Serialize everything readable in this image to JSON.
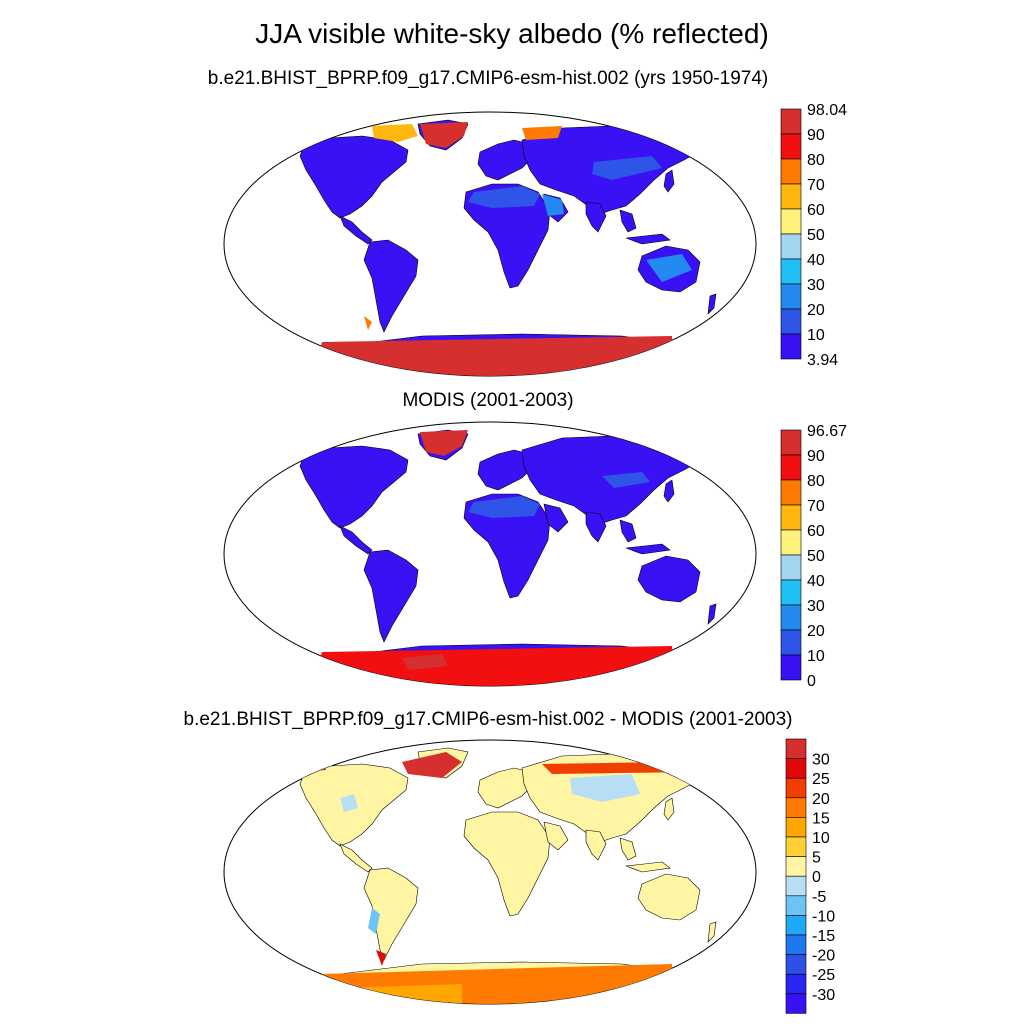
{
  "title": "JJA visible white-sky albedo (% reflected)",
  "panels": [
    {
      "title": "b.e21.BHIST_BPRP.f09_g17.CMIP6-esm-hist.002 (yrs 1950-1974)",
      "colorbar": {
        "labels": [
          "98.04",
          "90",
          "80",
          "70",
          "60",
          "50",
          "40",
          "30",
          "20",
          "10",
          "3.94"
        ],
        "colors": [
          "#d62f2f",
          "#f20f0f",
          "#ff7a00",
          "#ffb70f",
          "#fff27a",
          "#a3d4f0",
          "#1ec0f5",
          "#2489f0",
          "#2f55e8",
          "#3a10f5"
        ]
      }
    },
    {
      "title": "MODIS (2001-2003)",
      "colorbar": {
        "labels": [
          "96.67",
          "90",
          "80",
          "70",
          "60",
          "50",
          "40",
          "30",
          "20",
          "10",
          "0"
        ],
        "colors": [
          "#d62f2f",
          "#f20f0f",
          "#ff7a00",
          "#ffb70f",
          "#fff27a",
          "#a3d4f0",
          "#1ec0f5",
          "#2489f0",
          "#2f55e8",
          "#3a10f5"
        ]
      }
    },
    {
      "title": "b.e21.BHIST_BPRP.f09_g17.CMIP6-esm-hist.002 - MODIS (2001-2003)",
      "colorbar": {
        "labels": [
          "30",
          "25",
          "20",
          "15",
          "10",
          "5",
          "0",
          "-5",
          "-10",
          "-15",
          "-20",
          "-25",
          "-30"
        ],
        "colors": [
          "#d62f2f",
          "#e00808",
          "#f03d00",
          "#ff7a00",
          "#ffa600",
          "#ffd033",
          "#fff5a3",
          "#b8def5",
          "#6cc4f5",
          "#1ea8f5",
          "#1f78f0",
          "#2f50e8",
          "#2a25f0",
          "#3a10f5"
        ]
      }
    }
  ]
}
